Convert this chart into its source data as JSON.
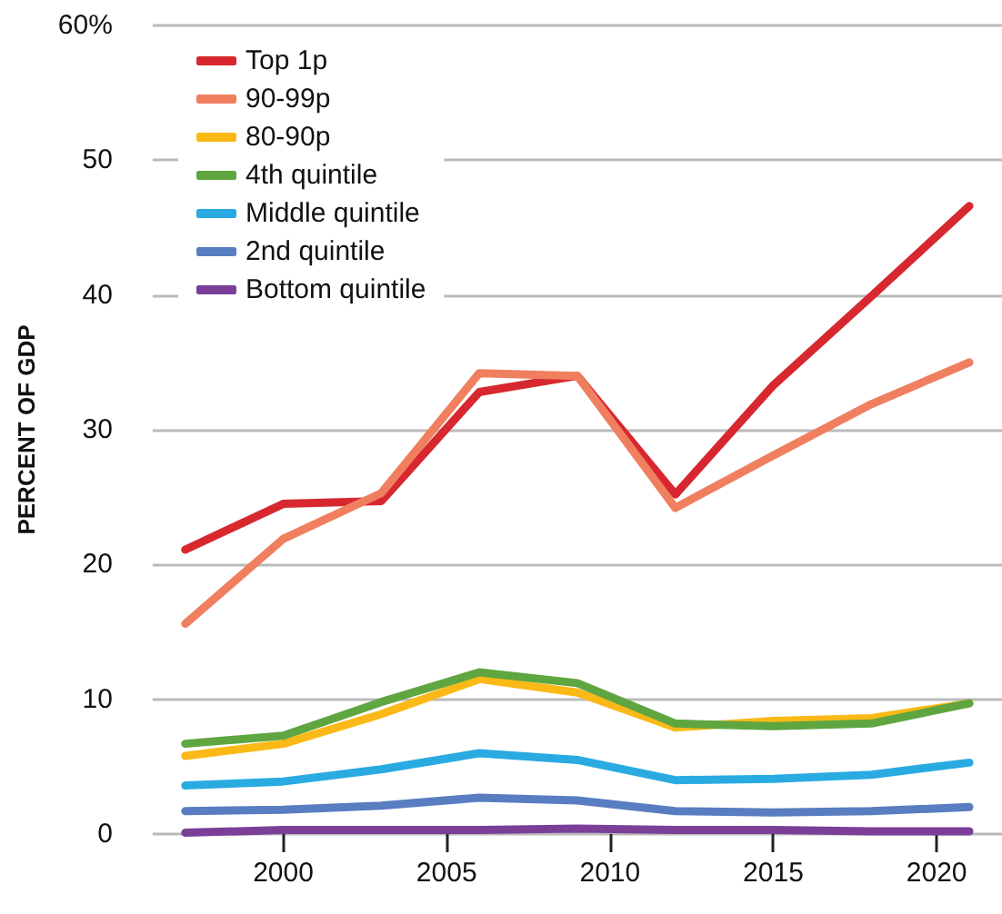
{
  "chart_data": {
    "type": "line",
    "ylabel": "PERCENT OF GDP",
    "x": [
      1997,
      2000,
      2003,
      2006,
      2009,
      2012,
      2015,
      2018,
      2021
    ],
    "xlim": [
      1996,
      2022
    ],
    "xticks": [
      2000,
      2005,
      2010,
      2015,
      2020
    ],
    "ylim": [
      0,
      60
    ],
    "yticks": [
      0,
      10,
      20,
      30,
      40,
      50,
      {
        "value": 60,
        "label": "60%"
      }
    ],
    "grid": "y",
    "legend": "top left",
    "marker": "none",
    "line_style": "solid",
    "series": [
      {
        "name": "Top 1p",
        "color": "#d7282f",
        "values": [
          21.1,
          24.5,
          24.7,
          32.8,
          34.0,
          25.2,
          33.3,
          39.9,
          46.6
        ]
      },
      {
        "name": "90-99p",
        "color": "#f07f5f",
        "values": [
          15.6,
          21.9,
          25.3,
          34.2,
          34.0,
          24.2,
          28.1,
          31.9,
          35.0
        ]
      },
      {
        "name": "80-90p",
        "color": "#fbb917",
        "values": [
          5.8,
          6.7,
          8.9,
          11.5,
          10.5,
          7.9,
          8.4,
          8.6,
          9.7
        ]
      },
      {
        "name": "4th quintile",
        "color": "#5fa641",
        "values": [
          6.7,
          7.3,
          9.8,
          12.0,
          11.2,
          8.2,
          8.0,
          8.2,
          9.7
        ]
      },
      {
        "name": "Middle quintile",
        "color": "#29abe2",
        "values": [
          3.6,
          3.9,
          4.8,
          6.0,
          5.5,
          4.0,
          4.1,
          4.4,
          5.3
        ]
      },
      {
        "name": "2nd quintile",
        "color": "#587dc0",
        "values": [
          1.7,
          1.8,
          2.1,
          2.7,
          2.5,
          1.7,
          1.6,
          1.7,
          2.0
        ]
      },
      {
        "name": "Bottom quintile",
        "color": "#7b3f98",
        "values": [
          0.1,
          0.3,
          0.3,
          0.3,
          0.4,
          0.3,
          0.3,
          0.2,
          0.2
        ]
      }
    ]
  }
}
